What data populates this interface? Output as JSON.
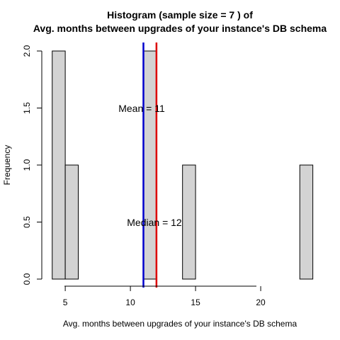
{
  "chart_data": {
    "type": "bar",
    "title_line1": "Histogram (sample size =  7 ) of",
    "title_line2": "Avg. months between upgrades of your instance's DB schema",
    "xlabel": "Avg. months between upgrades of your instance's DB schema",
    "ylabel": "Frequency",
    "xlim": [
      3.2,
      24.4
    ],
    "ylim": [
      0,
      2.0
    ],
    "x_ticks": [
      5,
      10,
      15,
      20
    ],
    "y_ticks": [
      0.0,
      0.5,
      1.0,
      1.5,
      2.0
    ],
    "y_tick_labels": [
      "0.0",
      "0.5",
      "1.0",
      "1.5",
      "2.0"
    ],
    "bins": [
      {
        "start": 4,
        "end": 5,
        "count": 2
      },
      {
        "start": 5,
        "end": 6,
        "count": 1
      },
      {
        "start": 11,
        "end": 12,
        "count": 2
      },
      {
        "start": 14,
        "end": 15,
        "count": 1
      },
      {
        "start": 23,
        "end": 24,
        "count": 1
      }
    ],
    "mean": {
      "value": 11,
      "label": "Mean = 11",
      "color": "#0000cd"
    },
    "median": {
      "value": 12,
      "label": "Median = 12",
      "color": "#dd0000"
    },
    "mean_label_y": 1.5,
    "median_label_y": 0.5
  }
}
